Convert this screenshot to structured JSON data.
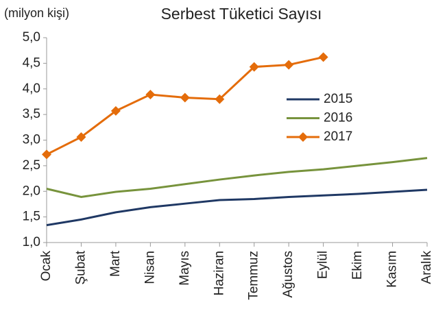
{
  "chart_data": {
    "type": "line",
    "title": "Serbest Tüketici Sayısı",
    "y_label": "(milyon kişi)",
    "categories": [
      "Ocak",
      "Şubat",
      "Mart",
      "Nisan",
      "Mayıs",
      "Haziran",
      "Temmuz",
      "Ağustos",
      "Eylül",
      "Ekim",
      "Kasım",
      "Aralık"
    ],
    "series": [
      {
        "name": "2015",
        "color": "#1f3864",
        "marker": false,
        "values": [
          1.34,
          1.45,
          1.59,
          1.69,
          1.76,
          1.83,
          1.85,
          1.89,
          1.92,
          1.95,
          1.99,
          2.03
        ]
      },
      {
        "name": "2016",
        "color": "#77933c",
        "marker": false,
        "values": [
          2.05,
          1.89,
          1.99,
          2.05,
          2.14,
          2.23,
          2.31,
          2.38,
          2.43,
          2.5,
          2.57,
          2.65
        ]
      },
      {
        "name": "2017",
        "color": "#e46c0a",
        "marker": true,
        "values": [
          2.72,
          3.06,
          3.57,
          3.89,
          3.83,
          3.8,
          4.43,
          4.47,
          4.62,
          null,
          null,
          null
        ]
      }
    ],
    "ylim": [
      1,
      5
    ],
    "yticks": [
      {
        "value": 1,
        "label": "1,0"
      },
      {
        "value": 1.5,
        "label": "1,5"
      },
      {
        "value": 2,
        "label": "2,0"
      },
      {
        "value": 2.5,
        "label": "2,5"
      },
      {
        "value": 3,
        "label": "3,0"
      },
      {
        "value": 3.5,
        "label": "3,5"
      },
      {
        "value": 4,
        "label": "4,0"
      },
      {
        "value": 4.5,
        "label": "4,5"
      },
      {
        "value": 5,
        "label": "5,0"
      }
    ],
    "grid": false
  }
}
